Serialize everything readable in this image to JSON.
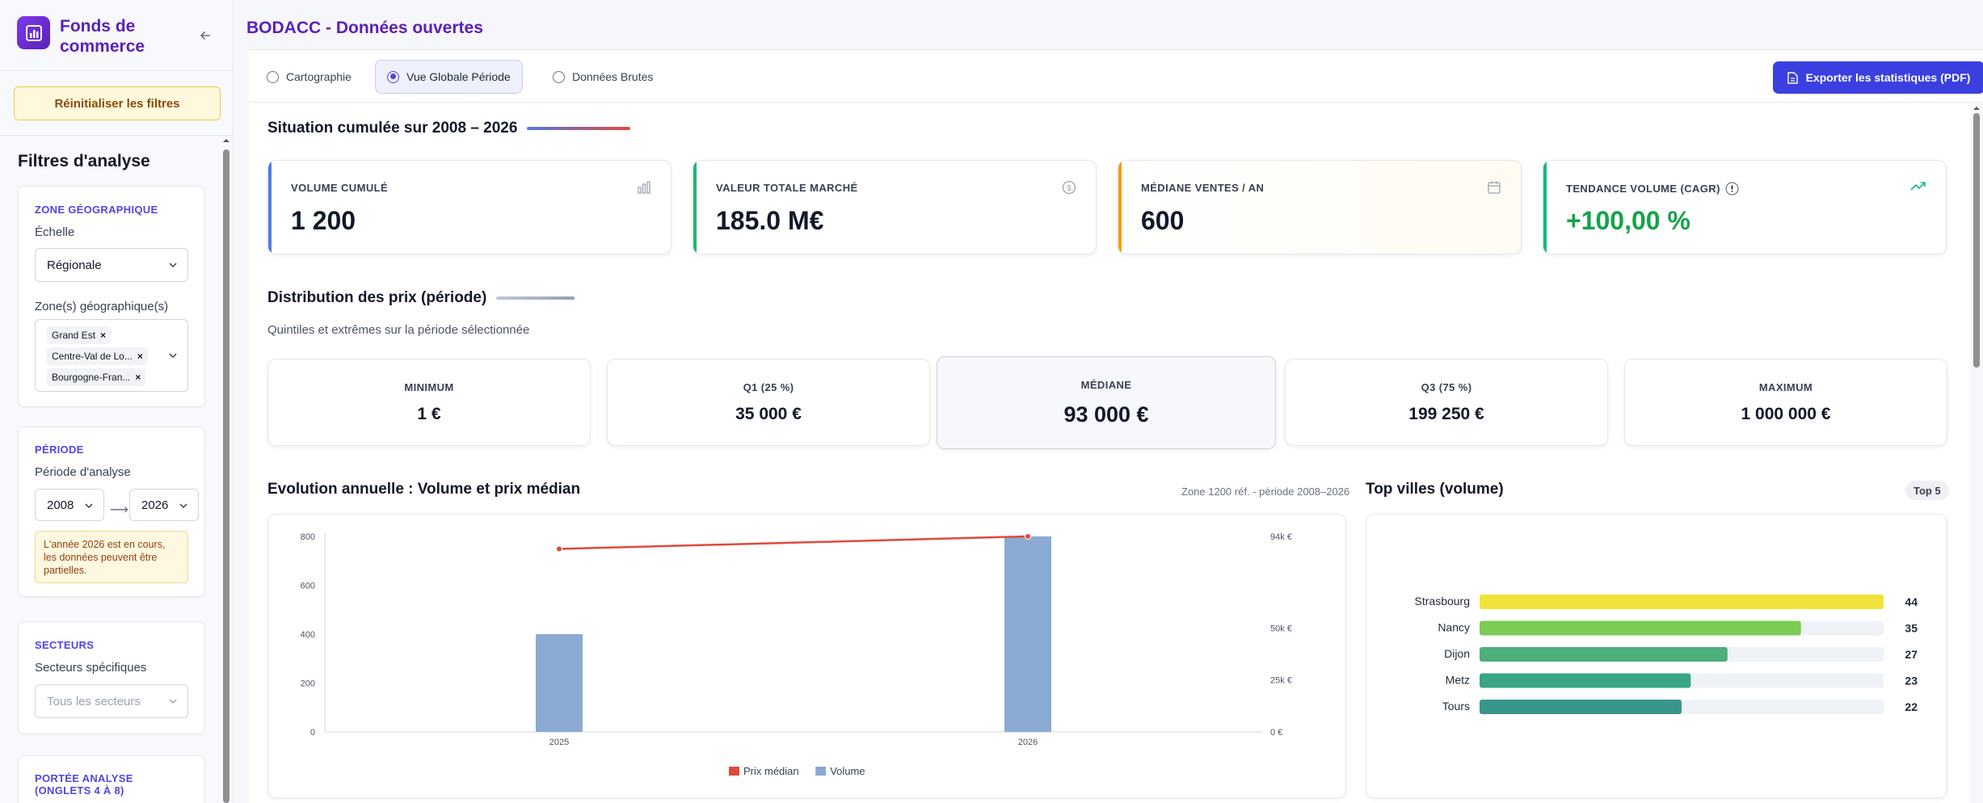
{
  "app": {
    "brand": "Fonds de commerce",
    "title": "BODACC - Données ouvertes"
  },
  "sidebar": {
    "reset_label": "Réinitialiser les filtres",
    "filters_title": "Filtres d'analyse",
    "geo": {
      "heading": "ZONE GÉOGRAPHIQUE",
      "scale_label": "Échelle",
      "scale_value": "Régionale",
      "zones_label": "Zone(s) géographique(s)",
      "zones": [
        "Grand Est",
        "Centre-Val de Lo...",
        "Bourgogne-Fran..."
      ]
    },
    "period": {
      "heading": "PÉRIODE",
      "label": "Période d'analyse",
      "from": "2008",
      "to": "2026",
      "warning": "L'année 2026 est en cours, les données peuvent être partielles."
    },
    "sectors": {
      "heading": "SECTEURS",
      "label": "Secteurs spécifiques",
      "placeholder": "Tous les secteurs"
    },
    "scope": {
      "heading": "PORTÉE ANALYSE (ONGLETS 4 À 8)"
    }
  },
  "tabs": [
    {
      "label": "Cartographie",
      "active": false
    },
    {
      "label": "Vue Globale Période",
      "active": true
    },
    {
      "label": "Données Brutes",
      "active": false
    }
  ],
  "export_label": "Exporter les statistiques (PDF)",
  "situation": {
    "title": "Situation cumulée sur 2008 – 2026",
    "kpis": [
      {
        "label": "VOLUME CUMULÉ",
        "value": "1 200",
        "color": "#4f7be0",
        "icon": "bar-chart-icon"
      },
      {
        "label": "VALEUR TOTALE MARCHÉ",
        "value": "185.0 M€",
        "color": "#22b573",
        "icon": "dollar-circle-icon"
      },
      {
        "label": "MÉDIANE VENTES / AN",
        "value": "600",
        "color": "#f59e0b",
        "icon": "calendar-icon"
      },
      {
        "label": "TENDANCE VOLUME (CAGR)",
        "value": "+100,00 %",
        "color": "#10b981",
        "icon": "trending-up-icon"
      }
    ]
  },
  "distribution": {
    "title": "Distribution des prix (période)",
    "subtitle": "Quintiles et extrêmes sur la période sélectionnée",
    "stats": [
      {
        "label": "MINIMUM",
        "value": "1 €"
      },
      {
        "label": "Q1 (25 %)",
        "value": "35 000 €"
      },
      {
        "label": "MÉDIANE",
        "value": "93 000 €"
      },
      {
        "label": "Q3 (75 %)",
        "value": "199 250 €"
      },
      {
        "label": "MAXIMUM",
        "value": "1 000 000 €"
      }
    ]
  },
  "evolution": {
    "title": "Evolution annuelle : Volume et prix médian",
    "note": "Zone 1200 réf. - période 2008–2026"
  },
  "top_cities": {
    "title": "Top villes (volume)",
    "badge": "Top 5"
  },
  "chart_data": [
    {
      "type": "bar",
      "title": "Evolution annuelle : Volume et prix médian",
      "categories": [
        "2025",
        "2026"
      ],
      "series": [
        {
          "name": "Volume",
          "type": "bar",
          "axis": "left",
          "color": "#8aaad2",
          "values": [
            400,
            800
          ]
        },
        {
          "name": "Prix médian",
          "type": "line",
          "axis": "right",
          "color": "#e04a3c",
          "values": [
            88000,
            94000
          ]
        }
      ],
      "ylim": [
        0,
        800
      ],
      "yticks": [
        0,
        200,
        400,
        600,
        800
      ],
      "y2lim": [
        0,
        94000
      ],
      "y2ticks": [
        {
          "value": 0,
          "label": "0 €"
        },
        {
          "value": 25000,
          "label": "25k €"
        },
        {
          "value": 50000,
          "label": "50k €"
        },
        {
          "value": 94000,
          "label": "94k €"
        }
      ],
      "legend": "bottom"
    },
    {
      "type": "bar",
      "orientation": "horizontal",
      "title": "Top villes (volume)",
      "categories": [
        "Strasbourg",
        "Nancy",
        "Dijon",
        "Metz",
        "Tours"
      ],
      "values": [
        44,
        35,
        27,
        23,
        22
      ],
      "colors": [
        "#f1e33a",
        "#7ccb55",
        "#4daf7b",
        "#38a584",
        "#3a958a"
      ],
      "xlim": [
        0,
        44
      ]
    }
  ]
}
